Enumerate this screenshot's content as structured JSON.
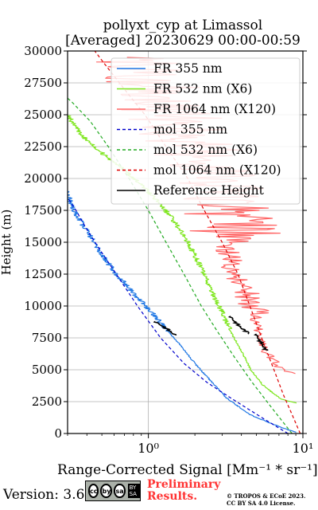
{
  "chart_data": {
    "type": "line",
    "title": "pollyxt_cyp at Limassol",
    "subtitle": "[Averaged] 20230629 00:00-00:59",
    "xlabel": "Range-Corrected Signal [Mm⁻¹ * sr⁻¹]",
    "ylabel": "Height (m)",
    "xscale": "log",
    "xlim": [
      0.3,
      10
    ],
    "ylim": [
      0,
      30000
    ],
    "xticks": [
      1,
      10
    ],
    "xtick_labels": [
      "10⁰",
      "10¹"
    ],
    "yticks": [
      0,
      2500,
      5000,
      7500,
      10000,
      12500,
      15000,
      17500,
      20000,
      22500,
      25000,
      27500,
      30000
    ],
    "ytick_labels": [
      "0",
      "2500",
      "5000",
      "7500",
      "10000",
      "12500",
      "15000",
      "17500",
      "20000",
      "22500",
      "25000",
      "27500",
      "30000"
    ],
    "grid": true,
    "legend_position": "top-right",
    "series": [
      {
        "name": "FR 355 nm",
        "color": "#1f77e4",
        "style": "solid",
        "points": [
          [
            9,
            100
          ],
          [
            8.0,
            300
          ],
          [
            6.5,
            700
          ],
          [
            4.5,
            1500
          ],
          [
            3.2,
            2800
          ],
          [
            2.5,
            4200
          ],
          [
            2.0,
            5500
          ],
          [
            1.6,
            7000
          ],
          [
            1.3,
            8200
          ],
          [
            1.05,
            9500
          ],
          [
            0.8,
            11000
          ],
          [
            0.62,
            12500
          ],
          [
            0.5,
            14000
          ],
          [
            0.42,
            15500
          ],
          [
            0.37,
            16500
          ],
          [
            0.33,
            17500
          ],
          [
            0.31,
            18300
          ],
          [
            0.3,
            19000
          ]
        ]
      },
      {
        "name": "FR 532 nm (X6)",
        "color": "#7fe620",
        "style": "solid",
        "points": [
          [
            9,
            2400
          ],
          [
            7.2,
            2700
          ],
          [
            5.5,
            3800
          ],
          [
            4.6,
            5000
          ],
          [
            4.0,
            6500
          ],
          [
            3.4,
            8000
          ],
          [
            3.0,
            9500
          ],
          [
            2.6,
            11000
          ],
          [
            2.2,
            13000
          ],
          [
            1.8,
            15000
          ],
          [
            1.5,
            16500
          ],
          [
            1.2,
            18000
          ],
          [
            0.9,
            19500
          ],
          [
            0.65,
            21000
          ],
          [
            0.5,
            22000
          ],
          [
            0.4,
            23000
          ],
          [
            0.34,
            24000
          ],
          [
            0.3,
            25000
          ]
        ]
      },
      {
        "name": "FR 1064 nm (X120)",
        "color": "#ff6666",
        "style": "solid",
        "noisy": true,
        "points": [
          [
            9,
            4700
          ],
          [
            7.0,
            5000
          ],
          [
            5.5,
            6500
          ],
          [
            5.0,
            8000
          ],
          [
            4.3,
            10000
          ],
          [
            3.4,
            12500
          ],
          [
            2.7,
            15000
          ],
          [
            2.2,
            17500
          ],
          [
            1.8,
            20000
          ],
          [
            1.4,
            22500
          ],
          [
            1.0,
            25000
          ],
          [
            0.7,
            27500
          ],
          [
            0.5,
            29500
          ]
        ]
      },
      {
        "name": "mol 355 nm",
        "color": "#0000cc",
        "style": "dashed",
        "points": [
          [
            8.0,
            0
          ],
          [
            5.5,
            1200
          ],
          [
            3.5,
            2700
          ],
          [
            2.4,
            4000
          ],
          [
            1.7,
            5500
          ],
          [
            1.2,
            7500
          ],
          [
            0.85,
            10000
          ],
          [
            0.62,
            12500
          ],
          [
            0.48,
            14500
          ],
          [
            0.4,
            16000
          ],
          [
            0.34,
            17500
          ],
          [
            0.3,
            18500
          ]
        ]
      },
      {
        "name": "mol 532 nm (X6)",
        "color": "#22aa22",
        "style": "dashed",
        "points": [
          [
            8.5,
            0
          ],
          [
            6.3,
            2000
          ],
          [
            4.7,
            4000
          ],
          [
            3.6,
            6000
          ],
          [
            2.8,
            8000
          ],
          [
            2.2,
            10000
          ],
          [
            1.7,
            12500
          ],
          [
            1.3,
            15000
          ],
          [
            1.0,
            17500
          ],
          [
            0.75,
            20000
          ],
          [
            0.55,
            22500
          ],
          [
            0.42,
            24500
          ],
          [
            0.32,
            26000
          ],
          [
            0.3,
            26300
          ]
        ]
      },
      {
        "name": "mol 1064 nm (X120)",
        "color": "#dd0000",
        "style": "dashed",
        "points": [
          [
            9.6,
            0
          ],
          [
            8.5,
            1500
          ],
          [
            7.5,
            3000
          ],
          [
            6.5,
            5000
          ],
          [
            5.6,
            7000
          ],
          [
            4.7,
            9500
          ],
          [
            3.8,
            12500
          ],
          [
            3.0,
            15000
          ],
          [
            2.3,
            17500
          ],
          [
            1.8,
            20000
          ],
          [
            1.3,
            22500
          ],
          [
            0.95,
            25000
          ],
          [
            0.7,
            27000
          ],
          [
            0.52,
            29000
          ],
          [
            0.45,
            30000
          ]
        ]
      },
      {
        "name": "Reference Height",
        "color": "#000000",
        "style": "solid",
        "segments": [
          {
            "points": [
              [
                1.1,
                8800
              ],
              [
                1.25,
                8400
              ],
              [
                1.5,
                7700
              ]
            ]
          },
          {
            "points": [
              [
                3.4,
                9200
              ],
              [
                3.8,
                8500
              ],
              [
                4.5,
                7800
              ]
            ]
          },
          {
            "points": [
              [
                5.0,
                7800
              ],
              [
                5.3,
                7200
              ],
              [
                5.8,
                6500
              ]
            ]
          }
        ]
      }
    ]
  },
  "footer": {
    "version": "Version: 3.6",
    "preliminary_1": "Preliminary",
    "preliminary_2": "Results.",
    "copyright_1": "© TROPOS & ECoE 2023.",
    "copyright_2": "CC BY SA 4.0 License.",
    "cc_symbols": [
      "cc",
      "by",
      "sa"
    ],
    "cc_label": "BY  SA"
  }
}
